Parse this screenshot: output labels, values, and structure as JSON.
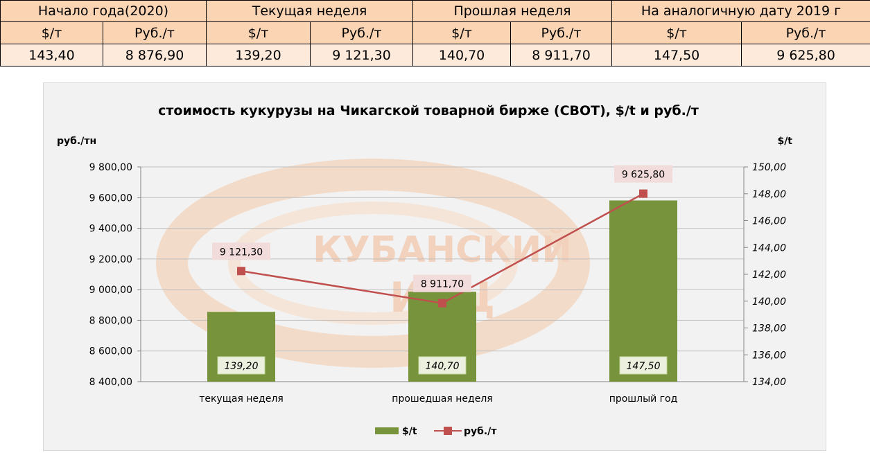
{
  "table": {
    "headers": [
      "Начало года(2020)",
      "Текущая неделя",
      "Прошлая неделя",
      "На аналогичную дату 2019 г"
    ],
    "units": [
      "$/т",
      "Руб./т",
      "$/т",
      "Руб./т",
      "$/т",
      "Руб./т",
      "$/т",
      "Руб./т"
    ],
    "values": [
      "143,40",
      "8 876,90",
      "139,20",
      "9 121,30",
      "140,70",
      "8 911,70",
      "147,50",
      "9 625,80"
    ]
  },
  "chart_data": {
    "type": "bar",
    "title": "стоимость кукурузы на Чикагской товарной бирже (CBOT), $/t и руб./т",
    "ylabel_left": "руб./тн",
    "ylabel_right": "$/t",
    "categories": [
      "текущая неделя",
      "прошедшая неделя",
      "прошлый год"
    ],
    "left_axis": {
      "range": [
        8400,
        9800
      ],
      "ticks": [
        "8 400,00",
        "8 600,00",
        "8 800,00",
        "9 000,00",
        "9 200,00",
        "9 400,00",
        "9 600,00",
        "9 800,00"
      ]
    },
    "right_axis": {
      "range": [
        134,
        150
      ],
      "ticks": [
        "134,00",
        "136,00",
        "138,00",
        "140,00",
        "142,00",
        "144,00",
        "146,00",
        "148,00",
        "150,00"
      ]
    },
    "series": [
      {
        "name": "$/t",
        "type": "bar",
        "axis": "right",
        "color": "#77933c",
        "values": [
          139.2,
          140.7,
          147.5
        ],
        "labels": [
          "139,20",
          "140,70",
          "147,50"
        ]
      },
      {
        "name": "руб./т",
        "type": "line",
        "axis": "left",
        "color": "#c0504d",
        "values": [
          9121.3,
          8911.7,
          9625.8
        ],
        "labels": [
          "9 121,30",
          "8 911,70",
          "9 625,80"
        ]
      }
    ],
    "legend_position": "bottom",
    "watermark": "КУБАНСКИЙ ИАЦ"
  }
}
